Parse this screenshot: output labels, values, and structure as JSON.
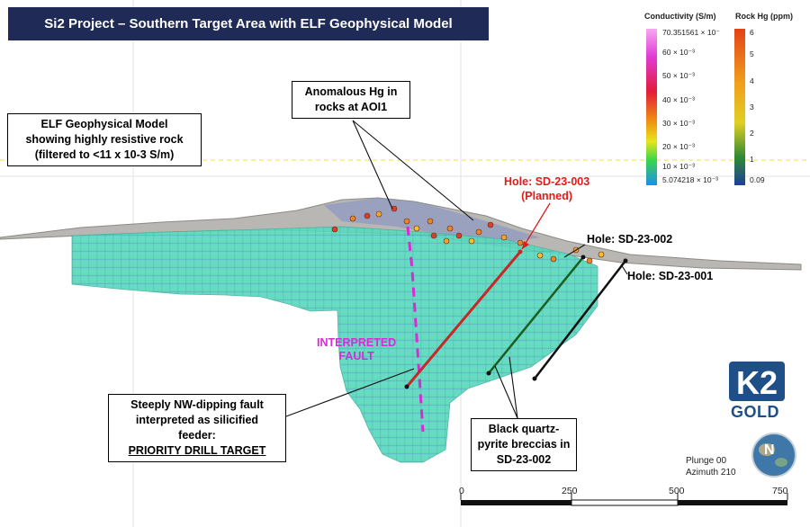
{
  "title": "Si2 Project – Southern Target Area with ELF Geophysical Model",
  "callouts": {
    "elf_model": [
      "ELF Geophysical Model",
      "showing highly resistive rock",
      "(filtered to <11 x 10-3 S/m)"
    ],
    "anomalous_hg": [
      "Anomalous Hg in",
      "rocks at AOI1"
    ],
    "fault_target": [
      "Steeply NW-dipping fault",
      "interpreted as silicified",
      "feeder:",
      "PRIORITY DRILL TARGET"
    ],
    "breccias": [
      "Black quartz-",
      "pyrite breccias in",
      "SD-23-002"
    ]
  },
  "holes": {
    "planned": [
      "Hole: SD-23-003",
      "(Planned)"
    ],
    "sd002": "Hole: SD-23-002",
    "sd001": "Hole: SD-23-001"
  },
  "fault_label": [
    "INTERPRETED",
    "FAULT"
  ],
  "legend": {
    "conductivity": {
      "title": "Conductivity (S/m)",
      "ticks": [
        "70.351561 × 10⁻",
        "60 × 10⁻³",
        "50 × 10⁻³",
        "40 × 10⁻³",
        "30 × 10⁻³",
        "20 × 10⁻³",
        "10 × 10⁻³",
        "5.074218 × 10⁻³"
      ]
    },
    "rock_hg": {
      "title": "Rock Hg (ppm)",
      "ticks": [
        "6",
        "5",
        "4",
        "3",
        "2",
        "1",
        "0.09"
      ]
    }
  },
  "scale_bar": [
    "0",
    "250",
    "500",
    "750"
  ],
  "orientation": [
    "Plunge 00",
    "Azimuth 210"
  ],
  "compass_letter": "N",
  "logo": {
    "mark": "K2",
    "word": "GOLD"
  },
  "colors": {
    "title_bg": "#1f2a57",
    "fault": "#d62bd6",
    "planned_hole": "#e11b1b",
    "hole_002": "#2e7d32",
    "hole_001": "#111111",
    "logo": "#1f4f87"
  }
}
